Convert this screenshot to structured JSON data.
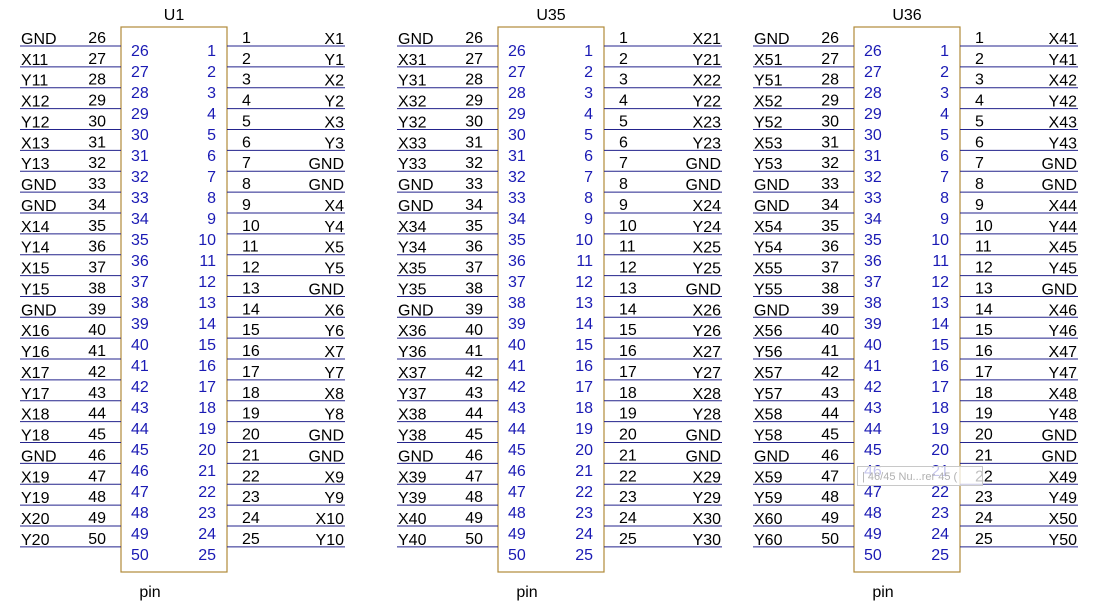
{
  "components": [
    {
      "ref": "U1",
      "footer": "pin",
      "left_nets": [
        "GND",
        "X11",
        "Y11",
        "X12",
        "Y12",
        "X13",
        "Y13",
        "GND",
        "GND",
        "X14",
        "Y14",
        "X15",
        "Y15",
        "GND",
        "X16",
        "Y16",
        "X17",
        "Y17",
        "X18",
        "Y18",
        "GND",
        "X19",
        "Y19",
        "X20",
        "Y20"
      ],
      "right_nets": [
        "X1",
        "Y1",
        "X2",
        "Y2",
        "X3",
        "Y3",
        "GND",
        "GND",
        "X4",
        "Y4",
        "X5",
        "Y5",
        "GND",
        "X6",
        "Y6",
        "X7",
        "Y7",
        "X8",
        "Y8",
        "GND",
        "GND",
        "X9",
        "Y9",
        "X10",
        "Y10"
      ]
    },
    {
      "ref": "U35",
      "footer": "pin",
      "left_nets": [
        "GND",
        "X31",
        "Y31",
        "X32",
        "Y32",
        "X33",
        "Y33",
        "GND",
        "GND",
        "X34",
        "Y34",
        "X35",
        "Y35",
        "GND",
        "X36",
        "Y36",
        "X37",
        "Y37",
        "X38",
        "Y38",
        "GND",
        "X39",
        "Y39",
        "X40",
        "Y40"
      ],
      "right_nets": [
        "X21",
        "Y21",
        "X22",
        "Y22",
        "X23",
        "Y23",
        "GND",
        "GND",
        "X24",
        "Y24",
        "X25",
        "Y25",
        "GND",
        "X26",
        "Y26",
        "X27",
        "Y27",
        "X28",
        "Y28",
        "GND",
        "GND",
        "X29",
        "Y29",
        "X30",
        "Y30"
      ]
    },
    {
      "ref": "U36",
      "footer": "pin",
      "left_nets": [
        "GND",
        "X51",
        "Y51",
        "X52",
        "Y52",
        "X53",
        "Y53",
        "GND",
        "GND",
        "X54",
        "Y54",
        "X55",
        "Y55",
        "GND",
        "X56",
        "Y56",
        "X57",
        "Y57",
        "X58",
        "Y58",
        "GND",
        "X59",
        "Y59",
        "X60",
        "Y60"
      ],
      "right_nets": [
        "X41",
        "Y41",
        "X42",
        "Y42",
        "X43",
        "Y43",
        "GND",
        "GND",
        "X44",
        "Y44",
        "X45",
        "Y45",
        "GND",
        "X46",
        "Y46",
        "X47",
        "Y47",
        "X48",
        "Y48",
        "GND",
        "GND",
        "X49",
        "Y49",
        "X50",
        "Y50"
      ]
    }
  ],
  "pin_numbers": {
    "left_outer": [
      "26",
      "27",
      "28",
      "29",
      "30",
      "31",
      "32",
      "33",
      "34",
      "35",
      "36",
      "37",
      "38",
      "39",
      "40",
      "41",
      "42",
      "43",
      "44",
      "45",
      "46",
      "47",
      "48",
      "49",
      "50"
    ],
    "right_outer": [
      "1",
      "2",
      "3",
      "4",
      "5",
      "6",
      "7",
      "8",
      "9",
      "10",
      "11",
      "12",
      "13",
      "14",
      "15",
      "16",
      "17",
      "18",
      "19",
      "20",
      "21",
      "22",
      "23",
      "24",
      "25"
    ]
  },
  "colors": {
    "wire": "#23238c",
    "body_outline": "#b08a3a",
    "inner_pin_numbers": "#1a1ab4",
    "text": "#000000",
    "background": "#ffffff"
  },
  "tooltip": {
    "text": "| 46/45 Nu...rer 45 ("
  }
}
